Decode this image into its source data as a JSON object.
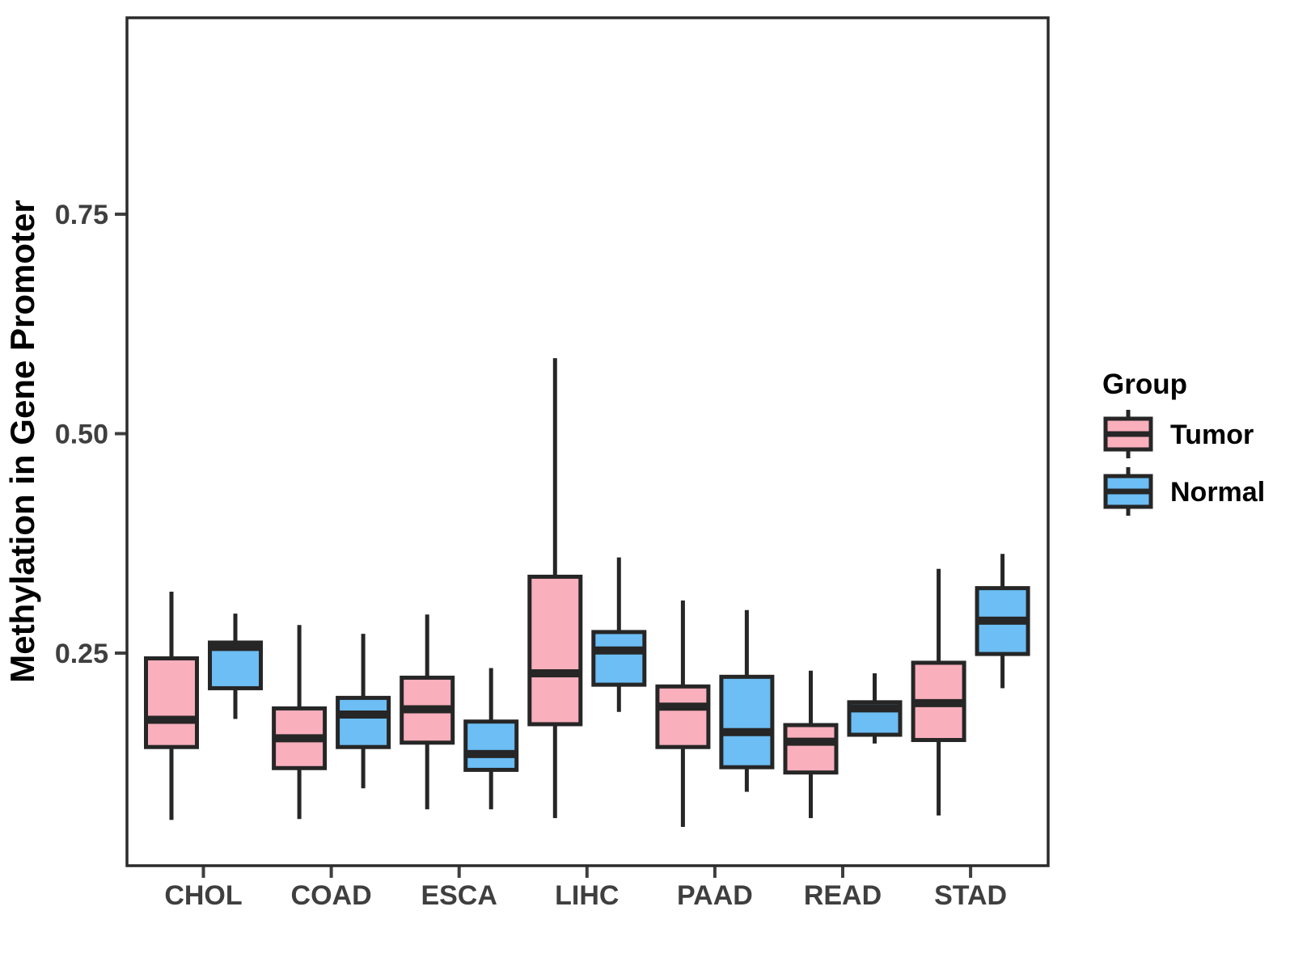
{
  "chart_data": {
    "type": "grouped_boxplot",
    "title": "",
    "xlabel": "",
    "ylabel": "Methylation in Gene Promoter",
    "categories": [
      "CHOL",
      "COAD",
      "ESCA",
      "LIHC",
      "PAAD",
      "READ",
      "STAD"
    ],
    "y_ticks": [
      0.25,
      0.5,
      0.75
    ],
    "y_tick_labels": [
      "0.25",
      "0.50",
      "0.75"
    ],
    "ylim": [
      0.01,
      0.97
    ],
    "grid": "off",
    "legend": {
      "title": "Group",
      "position": "right",
      "entries": [
        {
          "label": "Tumor",
          "color": "#F9AFBC"
        },
        {
          "label": "Normal",
          "color": "#6CBEF4"
        }
      ]
    },
    "series": [
      {
        "name": "Tumor",
        "color": "#F9AFBC",
        "boxes": [
          {
            "category": "CHOL",
            "whisker_low": 0.06,
            "q1": 0.143,
            "median": 0.174,
            "q3": 0.244,
            "whisker_high": 0.32
          },
          {
            "category": "COAD",
            "whisker_low": 0.061,
            "q1": 0.119,
            "median": 0.153,
            "q3": 0.187,
            "whisker_high": 0.282
          },
          {
            "category": "ESCA",
            "whisker_low": 0.072,
            "q1": 0.148,
            "median": 0.186,
            "q3": 0.222,
            "whisker_high": 0.294
          },
          {
            "category": "LIHC",
            "whisker_low": 0.062,
            "q1": 0.169,
            "median": 0.227,
            "q3": 0.337,
            "whisker_high": 0.586
          },
          {
            "category": "PAAD",
            "whisker_low": 0.052,
            "q1": 0.143,
            "median": 0.189,
            "q3": 0.212,
            "whisker_high": 0.31
          },
          {
            "category": "READ",
            "whisker_low": 0.062,
            "q1": 0.114,
            "median": 0.149,
            "q3": 0.168,
            "whisker_high": 0.23
          },
          {
            "category": "STAD",
            "whisker_low": 0.065,
            "q1": 0.151,
            "median": 0.193,
            "q3": 0.239,
            "whisker_high": 0.346
          }
        ]
      },
      {
        "name": "Normal",
        "color": "#6CBEF4",
        "boxes": [
          {
            "category": "CHOL",
            "whisker_low": 0.175,
            "q1": 0.21,
            "median": 0.257,
            "q3": 0.262,
            "whisker_high": 0.295
          },
          {
            "category": "COAD",
            "whisker_low": 0.096,
            "q1": 0.143,
            "median": 0.18,
            "q3": 0.199,
            "whisker_high": 0.272
          },
          {
            "category": "ESCA",
            "whisker_low": 0.072,
            "q1": 0.117,
            "median": 0.135,
            "q3": 0.172,
            "whisker_high": 0.233
          },
          {
            "category": "LIHC",
            "whisker_low": 0.183,
            "q1": 0.214,
            "median": 0.253,
            "q3": 0.274,
            "whisker_high": 0.359
          },
          {
            "category": "PAAD",
            "whisker_low": 0.092,
            "q1": 0.12,
            "median": 0.16,
            "q3": 0.223,
            "whisker_high": 0.299
          },
          {
            "category": "READ",
            "whisker_low": 0.147,
            "q1": 0.157,
            "median": 0.187,
            "q3": 0.194,
            "whisker_high": 0.227
          },
          {
            "category": "STAD",
            "whisker_low": 0.21,
            "q1": 0.249,
            "median": 0.287,
            "q3": 0.324,
            "whisker_high": 0.363
          }
        ]
      }
    ],
    "colors": {
      "box_stroke": "#262626",
      "axis_text": "#3F3F3F",
      "panel_border": "#2B2B2B",
      "title_text": "#000000"
    }
  }
}
